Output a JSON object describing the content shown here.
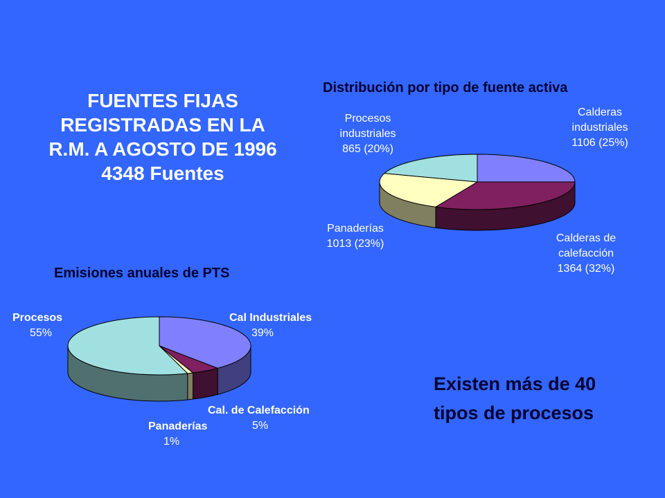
{
  "main_title": {
    "line1": "FUENTES FIJAS",
    "line2": "REGISTRADAS EN LA",
    "line3": "R.M. A AGOSTO DE 1996",
    "line4": "4348 Fuentes"
  },
  "note": {
    "line1": "Existen más de 40",
    "line2": "tipos de procesos"
  },
  "chart_data": [
    {
      "type": "pie",
      "title": "Distribución por tipo de fuente activa",
      "slices": [
        {
          "label_lines": [
            "Calderas",
            "industriales"
          ],
          "value_text": "1106  (25%)",
          "value": 1106,
          "percent": 25,
          "color": "#8080ff",
          "side_color": "#40407f"
        },
        {
          "label_lines": [
            "Calderas de",
            "calefacción"
          ],
          "value_text": "1364  (32%)",
          "value": 1364,
          "percent": 32,
          "color": "#802060",
          "side_color": "#401030"
        },
        {
          "label_lines": [
            "Panaderías"
          ],
          "value_text": "1013  (23%)",
          "value": 1013,
          "percent": 23,
          "color": "#ffffc0",
          "side_color": "#808060"
        },
        {
          "label_lines": [
            "Procesos",
            "industriales"
          ],
          "value_text": "865  (20%)",
          "value": 865,
          "percent": 20,
          "color": "#a0e0e0",
          "side_color": "#507070"
        }
      ]
    },
    {
      "type": "pie",
      "title": "Emisiones anuales de PTS",
      "slices": [
        {
          "label": "Cal Industriales",
          "value_text": "39%",
          "percent": 39,
          "color": "#8080ff",
          "side_color": "#40407f"
        },
        {
          "label": "Cal. de Calefacción",
          "value_text": "5%",
          "percent": 5,
          "color": "#802060",
          "side_color": "#401030"
        },
        {
          "label": "Panaderías",
          "value_text": "1%",
          "percent": 1,
          "color": "#ffffc0",
          "side_color": "#808060"
        },
        {
          "label": "Procesos",
          "value_text": "55%",
          "percent": 55,
          "color": "#a0e0e0",
          "side_color": "#507070"
        }
      ]
    }
  ]
}
